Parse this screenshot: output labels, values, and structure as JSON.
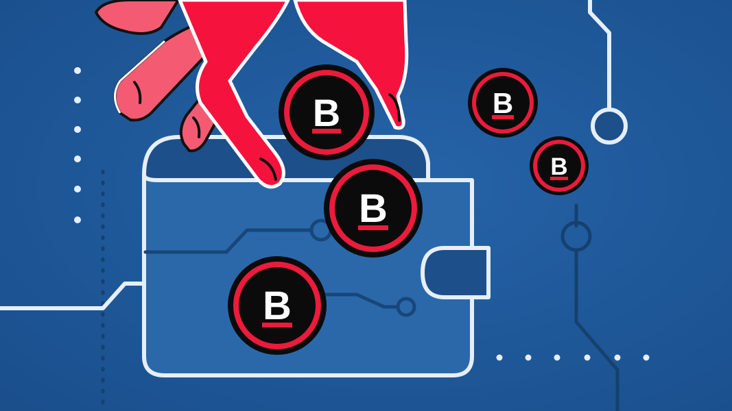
{
  "illustration": {
    "subject": "hand-dropping-coins-into-wallet",
    "colors": {
      "background": "#1f5a9c",
      "background_dark": "#18497f",
      "circuit_dark": "#15416f",
      "outline_light": "#dbe8f6",
      "wallet_fill": "#2b68aa",
      "hand_red": "#f5133e",
      "hand_pink": "#f45b73",
      "coin_ring": "#ea1b3b",
      "coin_black": "#0b0b0b"
    },
    "coin": {
      "letter": "B",
      "count": 5
    }
  }
}
